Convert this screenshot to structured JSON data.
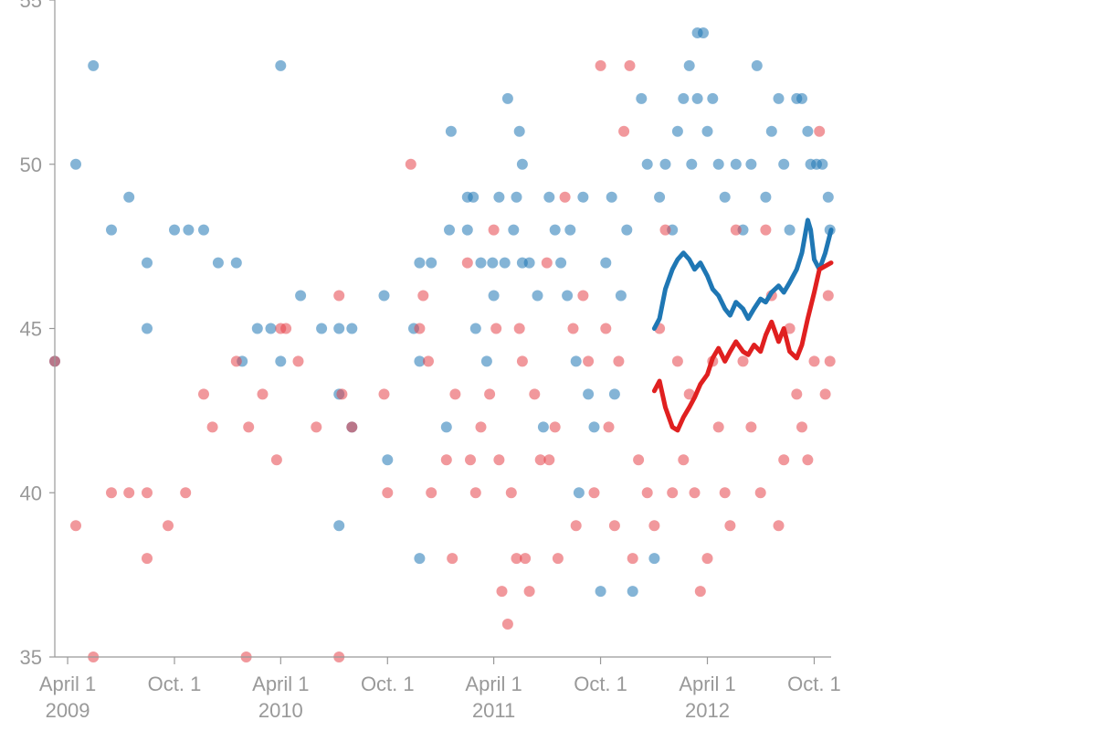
{
  "chart_data": {
    "type": "scatter",
    "title": "",
    "xlabel": "",
    "ylabel": "",
    "ylim": [
      35,
      55
    ],
    "xlim": [
      "2009-03-10",
      "2012-10-30"
    ],
    "grid": false,
    "legend": "none",
    "y_ticks": [
      {
        "value": 35,
        "label": "35"
      },
      {
        "value": 40,
        "label": "40"
      },
      {
        "value": 45,
        "label": "45"
      },
      {
        "value": 50,
        "label": "50"
      },
      {
        "value": 55,
        "label": "55"
      }
    ],
    "x_ticks": [
      {
        "date": "2009-04-01",
        "label": "April 1",
        "year": "2009"
      },
      {
        "date": "2009-10-01",
        "label": "Oct. 1",
        "year": ""
      },
      {
        "date": "2010-04-01",
        "label": "April 1",
        "year": "2010"
      },
      {
        "date": "2010-10-01",
        "label": "Oct. 1",
        "year": ""
      },
      {
        "date": "2011-04-01",
        "label": "April 1",
        "year": "2011"
      },
      {
        "date": "2011-10-01",
        "label": "Oct. 1",
        "year": ""
      },
      {
        "date": "2012-04-01",
        "label": "April 1",
        "year": "2012"
      },
      {
        "date": "2012-10-01",
        "label": "Oct. 1",
        "year": ""
      }
    ],
    "series": [
      {
        "color": "#1f77b4",
        "points": [
          [
            "2009-03-10",
            44
          ],
          [
            "2009-04-15",
            50
          ],
          [
            "2009-05-15",
            53
          ],
          [
            "2009-06-15",
            48
          ],
          [
            "2009-07-15",
            49
          ],
          [
            "2009-08-15",
            47
          ],
          [
            "2009-08-15",
            45
          ],
          [
            "2009-10-01",
            48
          ],
          [
            "2009-10-25",
            48
          ],
          [
            "2009-11-20",
            48
          ],
          [
            "2009-12-15",
            47
          ],
          [
            "2010-01-15",
            47
          ],
          [
            "2010-01-25",
            44
          ],
          [
            "2010-02-20",
            45
          ],
          [
            "2010-03-15",
            45
          ],
          [
            "2010-04-01",
            53
          ],
          [
            "2010-04-01",
            44
          ],
          [
            "2010-05-05",
            46
          ],
          [
            "2010-06-10",
            45
          ],
          [
            "2010-07-10",
            43
          ],
          [
            "2010-07-10",
            39
          ],
          [
            "2010-07-10",
            45
          ],
          [
            "2010-08-01",
            45
          ],
          [
            "2010-08-01",
            42
          ],
          [
            "2010-09-25",
            46
          ],
          [
            "2010-10-01",
            41
          ],
          [
            "2010-11-15",
            45
          ],
          [
            "2010-11-25",
            47
          ],
          [
            "2010-11-25",
            44
          ],
          [
            "2010-11-25",
            38
          ],
          [
            "2010-12-15",
            47
          ],
          [
            "2011-01-10",
            42
          ],
          [
            "2011-01-15",
            48
          ],
          [
            "2011-01-18",
            51
          ],
          [
            "2011-02-15",
            48
          ],
          [
            "2011-02-15",
            49
          ],
          [
            "2011-02-25",
            49
          ],
          [
            "2011-03-01",
            45
          ],
          [
            "2011-03-10",
            47
          ],
          [
            "2011-03-20",
            44
          ],
          [
            "2011-03-30",
            47
          ],
          [
            "2011-04-01",
            46
          ],
          [
            "2011-04-10",
            49
          ],
          [
            "2011-04-20",
            47
          ],
          [
            "2011-04-25",
            52
          ],
          [
            "2011-05-05",
            48
          ],
          [
            "2011-05-10",
            49
          ],
          [
            "2011-05-15",
            51
          ],
          [
            "2011-05-20",
            50
          ],
          [
            "2011-05-20",
            47
          ],
          [
            "2011-06-01",
            47
          ],
          [
            "2011-06-15",
            46
          ],
          [
            "2011-06-25",
            42
          ],
          [
            "2011-07-05",
            49
          ],
          [
            "2011-07-15",
            48
          ],
          [
            "2011-07-25",
            47
          ],
          [
            "2011-08-05",
            46
          ],
          [
            "2011-08-10",
            48
          ],
          [
            "2011-08-20",
            44
          ],
          [
            "2011-08-25",
            40
          ],
          [
            "2011-09-01",
            49
          ],
          [
            "2011-09-10",
            43
          ],
          [
            "2011-09-20",
            42
          ],
          [
            "2011-10-01",
            37
          ],
          [
            "2011-10-10",
            47
          ],
          [
            "2011-10-20",
            49
          ],
          [
            "2011-10-25",
            43
          ],
          [
            "2011-11-05",
            46
          ],
          [
            "2011-11-15",
            48
          ],
          [
            "2011-11-25",
            37
          ],
          [
            "2011-12-10",
            52
          ],
          [
            "2011-12-20",
            50
          ],
          [
            "2012-01-01",
            38
          ],
          [
            "2012-01-10",
            49
          ],
          [
            "2012-01-20",
            50
          ],
          [
            "2012-02-01",
            48
          ],
          [
            "2012-02-10",
            51
          ],
          [
            "2012-02-20",
            52
          ],
          [
            "2012-03-01",
            53
          ],
          [
            "2012-03-05",
            50
          ],
          [
            "2012-03-15",
            54
          ],
          [
            "2012-03-25",
            54
          ],
          [
            "2012-03-15",
            52
          ],
          [
            "2012-04-01",
            51
          ],
          [
            "2012-04-10",
            52
          ],
          [
            "2012-04-20",
            50
          ],
          [
            "2012-05-01",
            49
          ],
          [
            "2012-05-20",
            50
          ],
          [
            "2012-06-01",
            48
          ],
          [
            "2012-06-15",
            50
          ],
          [
            "2012-06-25",
            53
          ],
          [
            "2012-07-10",
            49
          ],
          [
            "2012-07-20",
            51
          ],
          [
            "2012-08-01",
            52
          ],
          [
            "2012-08-10",
            50
          ],
          [
            "2012-08-20",
            48
          ],
          [
            "2012-09-01",
            52
          ],
          [
            "2012-09-10",
            52
          ],
          [
            "2012-09-20",
            51
          ],
          [
            "2012-09-25",
            50
          ],
          [
            "2012-10-05",
            50
          ],
          [
            "2012-10-15",
            50
          ],
          [
            "2012-10-25",
            49
          ],
          [
            "2012-10-28",
            48
          ]
        ]
      },
      {
        "color": "#e6444b",
        "points": [
          [
            "2009-03-10",
            44
          ],
          [
            "2009-04-15",
            39
          ],
          [
            "2009-05-15",
            35
          ],
          [
            "2009-06-15",
            40
          ],
          [
            "2009-07-15",
            40
          ],
          [
            "2009-08-15",
            40
          ],
          [
            "2009-08-15",
            38
          ],
          [
            "2009-09-20",
            39
          ],
          [
            "2009-10-20",
            40
          ],
          [
            "2009-11-20",
            43
          ],
          [
            "2009-12-05",
            42
          ],
          [
            "2010-01-15",
            44
          ],
          [
            "2010-02-01",
            35
          ],
          [
            "2010-02-05",
            42
          ],
          [
            "2010-03-01",
            43
          ],
          [
            "2010-03-25",
            41
          ],
          [
            "2010-04-01",
            45
          ],
          [
            "2010-04-10",
            45
          ],
          [
            "2010-05-01",
            44
          ],
          [
            "2010-06-01",
            42
          ],
          [
            "2010-07-10",
            46
          ],
          [
            "2010-07-15",
            43
          ],
          [
            "2010-07-10",
            35
          ],
          [
            "2010-08-01",
            42
          ],
          [
            "2010-09-25",
            43
          ],
          [
            "2010-10-01",
            40
          ],
          [
            "2010-11-10",
            50
          ],
          [
            "2010-11-25",
            45
          ],
          [
            "2010-12-01",
            46
          ],
          [
            "2010-12-10",
            44
          ],
          [
            "2010-12-15",
            40
          ],
          [
            "2011-01-10",
            41
          ],
          [
            "2011-01-20",
            38
          ],
          [
            "2011-01-25",
            43
          ],
          [
            "2011-02-15",
            47
          ],
          [
            "2011-02-20",
            41
          ],
          [
            "2011-03-01",
            40
          ],
          [
            "2011-03-10",
            42
          ],
          [
            "2011-03-25",
            43
          ],
          [
            "2011-04-01",
            48
          ],
          [
            "2011-04-05",
            45
          ],
          [
            "2011-04-10",
            41
          ],
          [
            "2011-04-15",
            37
          ],
          [
            "2011-04-25",
            36
          ],
          [
            "2011-05-01",
            40
          ],
          [
            "2011-05-10",
            38
          ],
          [
            "2011-05-15",
            45
          ],
          [
            "2011-05-20",
            44
          ],
          [
            "2011-05-25",
            38
          ],
          [
            "2011-06-01",
            37
          ],
          [
            "2011-06-10",
            43
          ],
          [
            "2011-06-20",
            41
          ],
          [
            "2011-07-01",
            47
          ],
          [
            "2011-07-05",
            41
          ],
          [
            "2011-07-15",
            42
          ],
          [
            "2011-07-20",
            38
          ],
          [
            "2011-08-01",
            49
          ],
          [
            "2011-08-15",
            45
          ],
          [
            "2011-08-20",
            39
          ],
          [
            "2011-09-01",
            46
          ],
          [
            "2011-09-10",
            44
          ],
          [
            "2011-09-20",
            40
          ],
          [
            "2011-10-01",
            53
          ],
          [
            "2011-10-10",
            45
          ],
          [
            "2011-10-15",
            42
          ],
          [
            "2011-10-25",
            39
          ],
          [
            "2011-11-01",
            44
          ],
          [
            "2011-11-10",
            51
          ],
          [
            "2011-11-20",
            53
          ],
          [
            "2011-11-25",
            38
          ],
          [
            "2011-12-05",
            41
          ],
          [
            "2011-12-20",
            40
          ],
          [
            "2012-01-01",
            39
          ],
          [
            "2012-01-10",
            45
          ],
          [
            "2012-01-20",
            48
          ],
          [
            "2012-02-01",
            40
          ],
          [
            "2012-02-10",
            44
          ],
          [
            "2012-02-20",
            41
          ],
          [
            "2012-03-01",
            43
          ],
          [
            "2012-03-10",
            40
          ],
          [
            "2012-03-20",
            37
          ],
          [
            "2012-04-01",
            38
          ],
          [
            "2012-04-10",
            44
          ],
          [
            "2012-04-20",
            42
          ],
          [
            "2012-05-01",
            40
          ],
          [
            "2012-05-10",
            39
          ],
          [
            "2012-05-20",
            48
          ],
          [
            "2012-06-01",
            44
          ],
          [
            "2012-06-15",
            42
          ],
          [
            "2012-07-01",
            40
          ],
          [
            "2012-07-10",
            48
          ],
          [
            "2012-07-20",
            46
          ],
          [
            "2012-08-01",
            39
          ],
          [
            "2012-08-10",
            41
          ],
          [
            "2012-08-20",
            45
          ],
          [
            "2012-09-01",
            43
          ],
          [
            "2012-09-10",
            42
          ],
          [
            "2012-09-20",
            41
          ],
          [
            "2012-10-01",
            44
          ],
          [
            "2012-10-10",
            51
          ],
          [
            "2012-10-20",
            43
          ],
          [
            "2012-10-25",
            46
          ],
          [
            "2012-10-28",
            44
          ]
        ]
      }
    ],
    "trend_lines": [
      {
        "color": "#1f77b4",
        "points": [
          [
            "2012-01-01",
            45
          ],
          [
            "2012-01-10",
            45.3
          ],
          [
            "2012-01-20",
            46.2
          ],
          [
            "2012-02-01",
            46.8
          ],
          [
            "2012-02-10",
            47.1
          ],
          [
            "2012-02-20",
            47.3
          ],
          [
            "2012-03-01",
            47.1
          ],
          [
            "2012-03-10",
            46.8
          ],
          [
            "2012-03-20",
            47.0
          ],
          [
            "2012-04-01",
            46.6
          ],
          [
            "2012-04-10",
            46.2
          ],
          [
            "2012-04-20",
            46.0
          ],
          [
            "2012-05-01",
            45.6
          ],
          [
            "2012-05-10",
            45.4
          ],
          [
            "2012-05-20",
            45.8
          ],
          [
            "2012-06-01",
            45.6
          ],
          [
            "2012-06-10",
            45.3
          ],
          [
            "2012-06-20",
            45.6
          ],
          [
            "2012-07-01",
            45.9
          ],
          [
            "2012-07-10",
            45.8
          ],
          [
            "2012-07-20",
            46.1
          ],
          [
            "2012-08-01",
            46.3
          ],
          [
            "2012-08-10",
            46.1
          ],
          [
            "2012-08-20",
            46.4
          ],
          [
            "2012-09-01",
            46.8
          ],
          [
            "2012-09-10",
            47.3
          ],
          [
            "2012-09-15",
            47.8
          ],
          [
            "2012-09-20",
            48.3
          ],
          [
            "2012-09-25",
            48.0
          ],
          [
            "2012-10-01",
            47.1
          ],
          [
            "2012-10-10",
            46.8
          ],
          [
            "2012-10-20",
            47.3
          ],
          [
            "2012-10-30",
            48.0
          ]
        ]
      },
      {
        "color": "#e02020",
        "points": [
          [
            "2012-01-01",
            43.1
          ],
          [
            "2012-01-10",
            43.4
          ],
          [
            "2012-01-20",
            42.6
          ],
          [
            "2012-02-01",
            42.0
          ],
          [
            "2012-02-10",
            41.9
          ],
          [
            "2012-02-20",
            42.3
          ],
          [
            "2012-03-01",
            42.6
          ],
          [
            "2012-03-10",
            42.9
          ],
          [
            "2012-03-20",
            43.3
          ],
          [
            "2012-04-01",
            43.6
          ],
          [
            "2012-04-10",
            44.1
          ],
          [
            "2012-04-20",
            44.4
          ],
          [
            "2012-05-01",
            44.0
          ],
          [
            "2012-05-10",
            44.3
          ],
          [
            "2012-05-20",
            44.6
          ],
          [
            "2012-06-01",
            44.3
          ],
          [
            "2012-06-10",
            44.2
          ],
          [
            "2012-06-20",
            44.5
          ],
          [
            "2012-07-01",
            44.3
          ],
          [
            "2012-07-10",
            44.8
          ],
          [
            "2012-07-20",
            45.2
          ],
          [
            "2012-08-01",
            44.6
          ],
          [
            "2012-08-10",
            45.0
          ],
          [
            "2012-08-20",
            44.3
          ],
          [
            "2012-09-01",
            44.1
          ],
          [
            "2012-09-10",
            44.5
          ],
          [
            "2012-09-20",
            45.3
          ],
          [
            "2012-10-01",
            46.1
          ],
          [
            "2012-10-10",
            46.8
          ],
          [
            "2012-10-20",
            46.9
          ],
          [
            "2012-10-30",
            47.0
          ]
        ]
      }
    ]
  }
}
